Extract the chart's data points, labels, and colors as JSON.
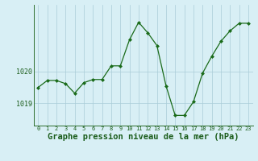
{
  "x": [
    0,
    1,
    2,
    3,
    4,
    5,
    6,
    7,
    8,
    9,
    10,
    11,
    12,
    13,
    14,
    15,
    16,
    17,
    18,
    19,
    20,
    21,
    22,
    23
  ],
  "y": [
    1019.5,
    1019.72,
    1019.72,
    1019.62,
    1019.32,
    1019.65,
    1019.75,
    1019.75,
    1020.18,
    1020.18,
    1021.0,
    1021.55,
    1021.22,
    1020.82,
    1019.55,
    1018.62,
    1018.62,
    1019.05,
    1019.95,
    1020.48,
    1020.95,
    1021.28,
    1021.52,
    1021.52
  ],
  "line_color": "#1a6b1a",
  "marker": "D",
  "marker_size": 2.0,
  "bg_color": "#d8eff5",
  "grid_color": "#aaccd8",
  "xlabel": "Graphe pression niveau de la mer (hPa)",
  "xlabel_fontsize": 7.5,
  "tick_color": "#1a5c1a",
  "ytick_labels": [
    "1019",
    "1020"
  ],
  "ytick_values": [
    1019,
    1020
  ],
  "ylim": [
    1018.3,
    1022.1
  ],
  "xlim": [
    -0.5,
    23.5
  ],
  "spine_color": "#2d6e2d"
}
